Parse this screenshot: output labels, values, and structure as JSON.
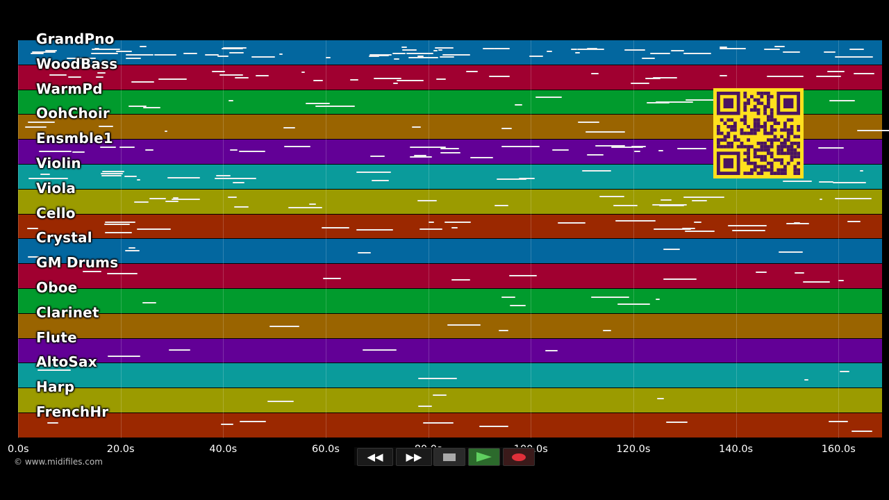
{
  "app": {
    "copyright": "© www.midifiles.com"
  },
  "tracks": [
    {
      "name": "GrandPno",
      "color": "#03679f"
    },
    {
      "name": "WoodBass",
      "color": "#a00030"
    },
    {
      "name": "WarmPd",
      "color": "#019b2d"
    },
    {
      "name": "OohChoir",
      "color": "#9a6400"
    },
    {
      "name": "Ensmble1",
      "color": "#620096"
    },
    {
      "name": "Violin",
      "color": "#0a9b9b"
    },
    {
      "name": "Viola",
      "color": "#9b9b00"
    },
    {
      "name": "Cello",
      "color": "#9b2800"
    },
    {
      "name": "Crystal",
      "color": "#03679f"
    },
    {
      "name": "GM Drums",
      "color": "#a00030"
    },
    {
      "name": "Oboe",
      "color": "#019b2d"
    },
    {
      "name": "Clarinet",
      "color": "#9a6400"
    },
    {
      "name": "Flute",
      "color": "#620096"
    },
    {
      "name": "AltoSax",
      "color": "#0a9b9b"
    },
    {
      "name": "Harp",
      "color": "#9b9b00"
    },
    {
      "name": "FrenchHr",
      "color": "#9b2800"
    }
  ],
  "timeline": {
    "ticks": [
      "0.0s",
      "20.0s",
      "40.0s",
      "60.0s",
      "80.0s",
      "100.0s",
      "120.0s",
      "140.0s",
      "160.0s"
    ],
    "tick_seconds": [
      0,
      20,
      40,
      60,
      80,
      100,
      120,
      140,
      160
    ],
    "max_seconds": 168.5
  },
  "transport": {
    "rewind_icon": "rewind-icon",
    "forward_icon": "fast-forward-icon",
    "stop_icon": "stop-icon",
    "play_icon": "play-icon",
    "record_icon": "record-icon"
  }
}
